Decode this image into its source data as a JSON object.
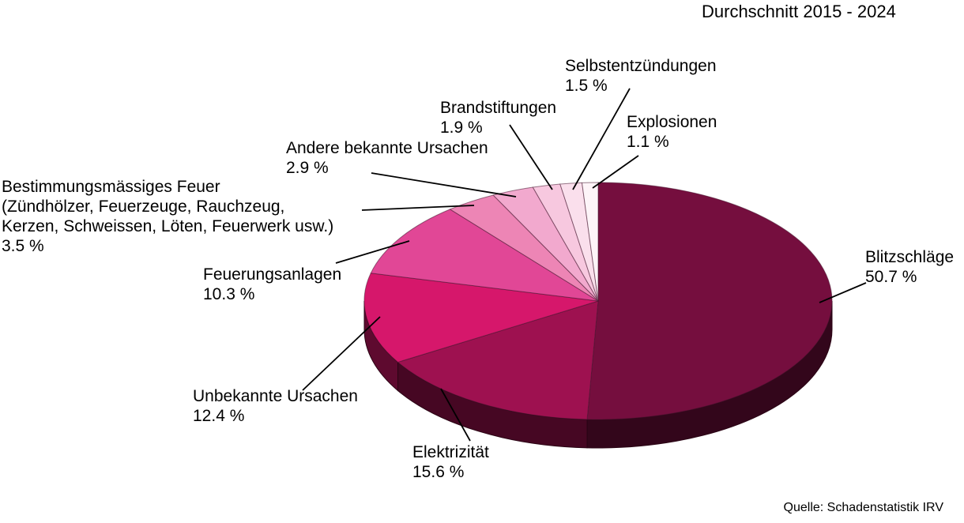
{
  "chart_data": {
    "type": "pie",
    "style": "3d",
    "title": "Durchschnitt 2015 - 2024",
    "source": "Quelle: Schadenstatistik IRV",
    "unit": "%",
    "legend_position": "none (external labels with leader lines)",
    "categories": [
      "Blitzschläge",
      "Elektrizität",
      "Unbekannte Ursachen",
      "Feuerungsanlagen",
      "Bestimmungsmässiges Feuer (Zündhölzer, Feuerzeuge, Rauchzeug, Kerzen, Schweissen, Löten, Feuerwerk usw.)",
      "Andere bekannte Ursachen",
      "Brandstiftungen",
      "Selbstentzündungen",
      "Explosionen"
    ],
    "values": [
      50.7,
      15.6,
      12.4,
      10.3,
      3.5,
      2.9,
      1.9,
      1.5,
      1.1
    ],
    "slices": [
      {
        "id": "blitzschlaege",
        "name": "Blitzschläge",
        "value": 50.7,
        "pct_label": "50.7 %",
        "label_lines": [
          "Blitzschläge",
          "50.7 %"
        ],
        "color": "#750E3E"
      },
      {
        "id": "elektrizitaet",
        "name": "Elektrizität",
        "value": 15.6,
        "pct_label": "15.6 %",
        "label_lines": [
          "Elektrizität",
          "15.6 %"
        ],
        "color": "#9E1150"
      },
      {
        "id": "unbekannte-ursachen",
        "name": "Unbekannte Ursachen",
        "value": 12.4,
        "pct_label": "12.4 %",
        "label_lines": [
          "Unbekannte Ursachen",
          "12.4 %"
        ],
        "color": "#D6176B"
      },
      {
        "id": "feuerungsanlagen",
        "name": "Feuerungsanlagen",
        "value": 10.3,
        "pct_label": "10.3 %",
        "label_lines": [
          "Feuerungsanlagen",
          "10.3 %"
        ],
        "color": "#E14796"
      },
      {
        "id": "bestimmungsmaessiges-feuer",
        "name": "Bestimmungsmässiges Feuer",
        "value": 3.5,
        "pct_label": "3.5 %",
        "label_lines": [
          "Bestimmungsmässiges Feuer",
          "(Zündhölzer, Feuerzeuge, Rauchzeug,",
          "Kerzen, Schweissen, Löten, Feuerwerk usw.)",
          "3.5 %"
        ],
        "color": "#ED85B5"
      },
      {
        "id": "andere-bekannte-ursachen",
        "name": "Andere bekannte Ursachen",
        "value": 2.9,
        "pct_label": "2.9 %",
        "label_lines": [
          "Andere bekannte Ursachen",
          "2.9 %"
        ],
        "color": "#F2A9CE"
      },
      {
        "id": "brandstiftungen",
        "name": "Brandstiftungen",
        "value": 1.9,
        "pct_label": "1.9 %",
        "label_lines": [
          "Brandstiftungen",
          "1.9 %"
        ],
        "color": "#F7C8DF"
      },
      {
        "id": "selbstentzuendungen",
        "name": "Selbstentzündungen",
        "value": 1.5,
        "pct_label": "1.5 %",
        "label_lines": [
          "Selbstentzündungen",
          "1.5 %"
        ],
        "color": "#FADFEC"
      },
      {
        "id": "explosionen",
        "name": "Explosionen",
        "value": 1.1,
        "pct_label": "1.1 %",
        "label_lines": [
          "Explosionen",
          "1.1 %"
        ],
        "color": "#FDF4F8"
      }
    ]
  }
}
